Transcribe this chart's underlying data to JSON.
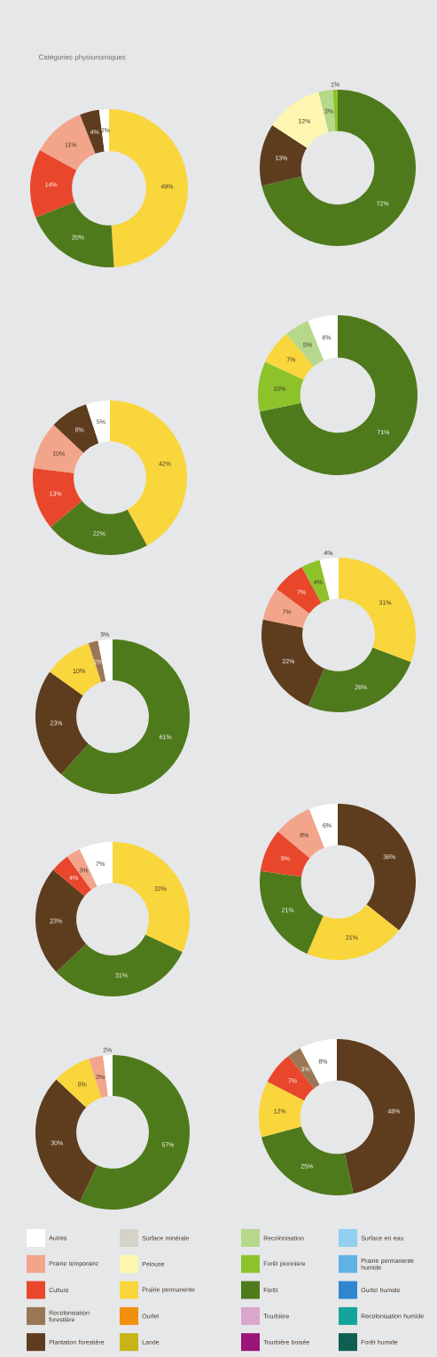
{
  "chart_data": [
    {
      "type": "donut",
      "title": "Catégories physionomiques",
      "categories": [
        null,
        null,
        null,
        null,
        null,
        null
      ],
      "values": [
        49,
        20,
        14,
        11,
        4,
        2
      ],
      "value_labels": [
        "49%",
        "20%",
        "14%",
        "11%",
        "4%",
        "2%"
      ],
      "colors": [
        "#f8d63c",
        "#4f7a1c",
        "#e8472c",
        "#f2a58a",
        "#5e3d1e",
        "#ffffff"
      ]
    },
    {
      "type": "donut",
      "categories": [
        null,
        null,
        null,
        null,
        null
      ],
      "values": [
        72,
        13,
        12,
        3,
        1
      ],
      "value_labels": [
        "72%",
        "13%",
        "12%",
        "3%",
        "1%"
      ],
      "colors": [
        "#4f7a1c",
        "#5e3d1e",
        "#fdf6b0",
        "#b6d88a",
        "#8dc22a"
      ]
    },
    {
      "type": "donut",
      "categories": [
        null,
        null,
        null,
        null,
        null
      ],
      "values": [
        71,
        10,
        7,
        5,
        6
      ],
      "value_labels": [
        "71%",
        "10%",
        "7%",
        "5%",
        "6%"
      ],
      "colors": [
        "#4f7a1c",
        "#8dc22a",
        "#f8d63c",
        "#b6d88a",
        "#ffffff"
      ]
    },
    {
      "type": "donut",
      "categories": [
        null,
        null,
        null,
        null,
        null,
        null
      ],
      "values": [
        42,
        22,
        13,
        10,
        8,
        5
      ],
      "value_labels": [
        "42%",
        "22%",
        "13%",
        "10%",
        "8%",
        "5%"
      ],
      "colors": [
        "#f8d63c",
        "#4f7a1c",
        "#e8472c",
        "#f2a58a",
        "#5e3d1e",
        "#ffffff"
      ]
    },
    {
      "type": "donut",
      "categories": [
        null,
        null,
        null,
        null,
        null,
        null,
        null
      ],
      "values": [
        31,
        26,
        22,
        7,
        7,
        4,
        4
      ],
      "value_labels": [
        "31%",
        "26%",
        "22%",
        "7%",
        "7%",
        "4%",
        "4%"
      ],
      "colors": [
        "#f8d63c",
        "#4f7a1c",
        "#5e3d1e",
        "#f2a58a",
        "#e8472c",
        "#8dc22a",
        "#ffffff"
      ]
    },
    {
      "type": "donut",
      "categories": [
        null,
        null,
        null,
        null,
        null
      ],
      "values": [
        61,
        23,
        10,
        2,
        3
      ],
      "value_labels": [
        "61%",
        "23%",
        "10%",
        "2%",
        "3%"
      ],
      "colors": [
        "#4f7a1c",
        "#5e3d1e",
        "#f8d63c",
        "#9a7654",
        "#ffffff"
      ]
    },
    {
      "type": "donut",
      "categories": [
        null,
        null,
        null,
        null,
        null,
        null
      ],
      "values": [
        36,
        21,
        21,
        9,
        8,
        6
      ],
      "value_labels": [
        "36%",
        "21%",
        "21%",
        "9%",
        "8%",
        "6%"
      ],
      "colors": [
        "#5e3d1e",
        "#f8d63c",
        "#4f7a1c",
        "#e8472c",
        "#f2a58a",
        "#ffffff"
      ]
    },
    {
      "type": "donut",
      "categories": [
        null,
        null,
        null,
        null,
        null,
        null
      ],
      "values": [
        32,
        31,
        23,
        4,
        3,
        7
      ],
      "value_labels": [
        "32%",
        "31%",
        "23%",
        "4%",
        "3%",
        "7%"
      ],
      "colors": [
        "#f8d63c",
        "#4f7a1c",
        "#5e3d1e",
        "#e8472c",
        "#f2a58a",
        "#ffffff"
      ]
    },
    {
      "type": "donut",
      "categories": [
        null,
        null,
        null,
        null,
        null,
        null
      ],
      "values": [
        48,
        25,
        12,
        7,
        3,
        8
      ],
      "value_labels": [
        "48%",
        "25%",
        "12%",
        "7%",
        "3%",
        "8%"
      ],
      "colors": [
        "#5e3d1e",
        "#4f7a1c",
        "#f8d63c",
        "#e8472c",
        "#9a7654",
        "#ffffff"
      ]
    },
    {
      "type": "donut",
      "categories": [
        null,
        null,
        null,
        null,
        null
      ],
      "values": [
        57,
        30,
        8,
        3,
        2
      ],
      "value_labels": [
        "57%",
        "30%",
        "8%",
        "3%",
        "2%"
      ],
      "colors": [
        "#4f7a1c",
        "#5e3d1e",
        "#f8d63c",
        "#f2a58a",
        "#ffffff"
      ]
    },
    {
      "type": "other",
      "categories": [
        "Autres",
        "Prairie temporaire",
        "Culture",
        "Recolonisation forestière",
        "Plantation forestière",
        "Surface minérale",
        "Pelouse",
        "Prairie permanente",
        "Ourlet",
        "Lande",
        "Recolonisation",
        "Forêt pionnière",
        "Forêt",
        "Tourbière",
        "Tourbière boisée",
        "Surface en eau",
        "Prairie permanente humide",
        "Ourlet humide",
        "Recolonisation humide",
        "Forêt humide"
      ],
      "colors": [
        "#ffffff",
        "#f2a58a",
        "#e8472c",
        "#9a7654",
        "#5e3d1e",
        "#d5d3c6",
        "#fdf6b0",
        "#f8d63c",
        "#f0900e",
        "#c8b417",
        "#b6d88a",
        "#8dc22a",
        "#4f7a1c",
        "#d9a6cc",
        "#9b1477",
        "#92cff0",
        "#5fb2e4",
        "#2f86cf",
        "#14a59a",
        "#0f5e52"
      ]
    }
  ]
}
